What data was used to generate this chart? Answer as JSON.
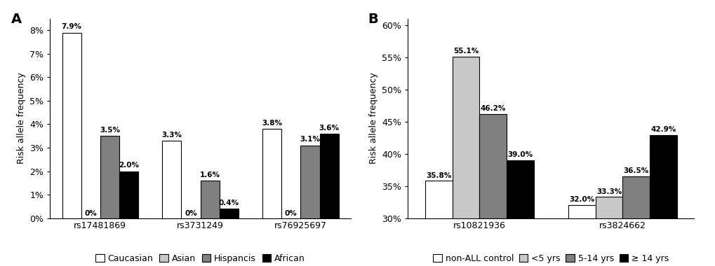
{
  "panel_A": {
    "snps": [
      "rs17481869",
      "rs3731249",
      "rs76925697"
    ],
    "groups": [
      "Caucasian",
      "Asian",
      "Hispancis",
      "African"
    ],
    "colors": [
      "#ffffff",
      "#c8c8c8",
      "#808080",
      "#000000"
    ],
    "values": [
      [
        7.9,
        0.0,
        3.5,
        2.0
      ],
      [
        3.3,
        0.0,
        1.6,
        0.4
      ],
      [
        3.8,
        0.0,
        3.1,
        3.6
      ]
    ],
    "labels": [
      [
        "7.9%",
        "0%",
        "3.5%",
        "2.0%"
      ],
      [
        "3.3%",
        "0%",
        "1.6%",
        "0.4%"
      ],
      [
        "3.8%",
        "0%",
        "3.1%",
        "3.6%"
      ]
    ],
    "ylabel": "Risk allele frequency",
    "ylim": [
      0,
      8.5
    ],
    "yticks": [
      0,
      1,
      2,
      3,
      4,
      5,
      6,
      7,
      8
    ],
    "yticklabels": [
      "0%",
      "1%",
      "2%",
      "3%",
      "4%",
      "5%",
      "6%",
      "7%",
      "8%"
    ],
    "panel_label": "A"
  },
  "panel_B": {
    "snps": [
      "rs10821936",
      "rs3824662"
    ],
    "groups": [
      "non-ALL control",
      "<5 yrs",
      "5-14 yrs",
      "≥ 14 yrs"
    ],
    "colors": [
      "#ffffff",
      "#c8c8c8",
      "#808080",
      "#000000"
    ],
    "values": [
      [
        35.8,
        55.1,
        46.2,
        39.0
      ],
      [
        32.0,
        33.3,
        36.5,
        42.9
      ]
    ],
    "labels": [
      [
        "35.8%",
        "55.1%",
        "46.2%",
        "39.0%"
      ],
      [
        "32.0%",
        "33.3%",
        "36.5%",
        "42.9%"
      ]
    ],
    "ylabel": "Risk allele frequency",
    "ylim": [
      30,
      61
    ],
    "yticks": [
      30,
      35,
      40,
      45,
      50,
      55,
      60
    ],
    "yticklabels": [
      "30%",
      "35%",
      "40%",
      "45%",
      "50%",
      "55%",
      "60%"
    ],
    "panel_label": "B"
  },
  "bar_width": 0.19,
  "edgecolor": "#000000",
  "fontsize_labels": 7.5,
  "fontsize_ticks": 9,
  "fontsize_legend": 9,
  "fontsize_panel": 14
}
